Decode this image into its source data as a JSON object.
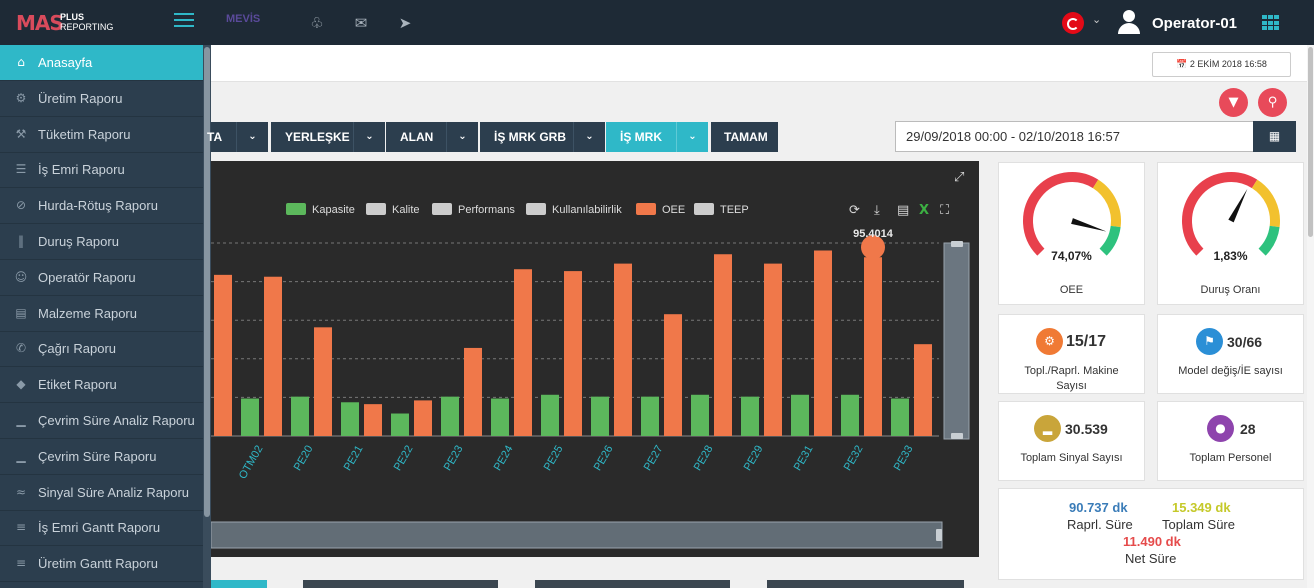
{
  "app": {
    "logo_main": "MAS",
    "logo_sub1": "PLUS",
    "logo_sub2": "REPORTING",
    "partner_logo": "MEVİS",
    "username": "Operator-01",
    "datetime_badge": "2 EKİM 2018 16:58"
  },
  "colors": {
    "topbar": "#1e2a36",
    "sidebar": "#2c3e4e",
    "accent": "#2fb8c8",
    "danger": "#e84a5a",
    "bar_kapasite": "#5cb85c",
    "bar_oee": "#f0784a"
  },
  "topbar_icons": [
    "bell-icon",
    "envelope-icon",
    "paper-plane-icon"
  ],
  "sidebar": {
    "items": [
      {
        "label": "Anasayfa",
        "icon": "home-icon",
        "active": true
      },
      {
        "label": "Üretim Raporu",
        "icon": "gears-icon"
      },
      {
        "label": "Tüketim Raporu",
        "icon": "gavel-icon"
      },
      {
        "label": "İş Emri Raporu",
        "icon": "list-icon"
      },
      {
        "label": "Hurda-Rötuş Raporu",
        "icon": "ban-icon"
      },
      {
        "label": "Duruş Raporu",
        "icon": "pause-icon"
      },
      {
        "label": "Operatör Raporu",
        "icon": "user-icon"
      },
      {
        "label": "Malzeme Raporu",
        "icon": "archive-icon"
      },
      {
        "label": "Çağrı Raporu",
        "icon": "phone-icon"
      },
      {
        "label": "Etiket Raporu",
        "icon": "tag-icon"
      },
      {
        "label": "Çevrim Süre Analiz Raporu",
        "icon": "signal-icon"
      },
      {
        "label": "Çevrim Süre Raporu",
        "icon": "signal-icon"
      },
      {
        "label": "Sinyal Süre Analiz Raporu",
        "icon": "wifi-icon"
      },
      {
        "label": "İş Emri Gantt Raporu",
        "icon": "bars-icon"
      },
      {
        "label": "Üretim Gantt Raporu",
        "icon": "bars-icon"
      }
    ]
  },
  "filters": {
    "items": [
      {
        "label": "TA",
        "selected": false
      },
      {
        "label": "YERLEŞKE",
        "selected": false
      },
      {
        "label": "ALAN",
        "selected": false
      },
      {
        "label": "İŞ MRK GRB",
        "selected": false
      },
      {
        "label": "İŞ MRK",
        "selected": true
      }
    ],
    "apply_label": "TAMAM",
    "date_range": "29/09/2018 00:00 - 02/10/2018 16:57"
  },
  "chart_data": {
    "type": "bar",
    "legend": [
      "Kapasite",
      "Kalite",
      "Performans",
      "Kullanılabilirlik",
      "OEE",
      "TEEP"
    ],
    "legend_colors": [
      "#5cb85c",
      "#cccccc",
      "#cccccc",
      "#cccccc",
      "#f0784a",
      "#cccccc"
    ],
    "categories": [
      "",
      "OTM02",
      "PE20",
      "PE21",
      "PE22",
      "PE23",
      "PE24",
      "PE25",
      "PE26",
      "PE27",
      "PE28",
      "PE29",
      "PE31",
      "PE32",
      "PE33"
    ],
    "series": [
      {
        "name": "Kapasite",
        "values": [
          null,
          20,
          21,
          18,
          12,
          21,
          20,
          22,
          21,
          21,
          22,
          21,
          22,
          22,
          20
        ]
      },
      {
        "name": "OEE",
        "values": [
          86,
          85,
          58,
          17,
          19,
          47,
          89,
          88,
          92,
          65,
          97,
          92,
          99,
          95.4014,
          49
        ]
      }
    ],
    "tooltip": "95.4014",
    "ylim": [
      0,
      103
    ],
    "grid": true,
    "legend_placement": "top-center"
  },
  "kpis": {
    "oee": {
      "value": "74,07%",
      "label": "OEE",
      "percent": 74.07
    },
    "downtime": {
      "value": "1,83%",
      "label": "Duruş Oranı",
      "percent": 1.83
    },
    "machines": {
      "value": "15/17",
      "label": "Topl./Raprl. Makine Sayısı",
      "icon": "gear-icon"
    },
    "model_change": {
      "value": "30/66",
      "label": "Model değiş/İE sayısı",
      "icon": "tag-icon"
    },
    "signals": {
      "value": "30.539",
      "label": "Toplam Sinyal Sayısı",
      "icon": "signal-icon"
    },
    "personnel": {
      "value": "28",
      "label": "Toplam Personel",
      "icon": "user-icon"
    }
  },
  "summary": {
    "reported_value": "90.737 dk",
    "reported_label": "Raprl. Süre",
    "total_value": "15.349 dk",
    "total_label": "Toplam Süre",
    "net_value": "11.490 dk",
    "net_label": "Net Süre"
  }
}
